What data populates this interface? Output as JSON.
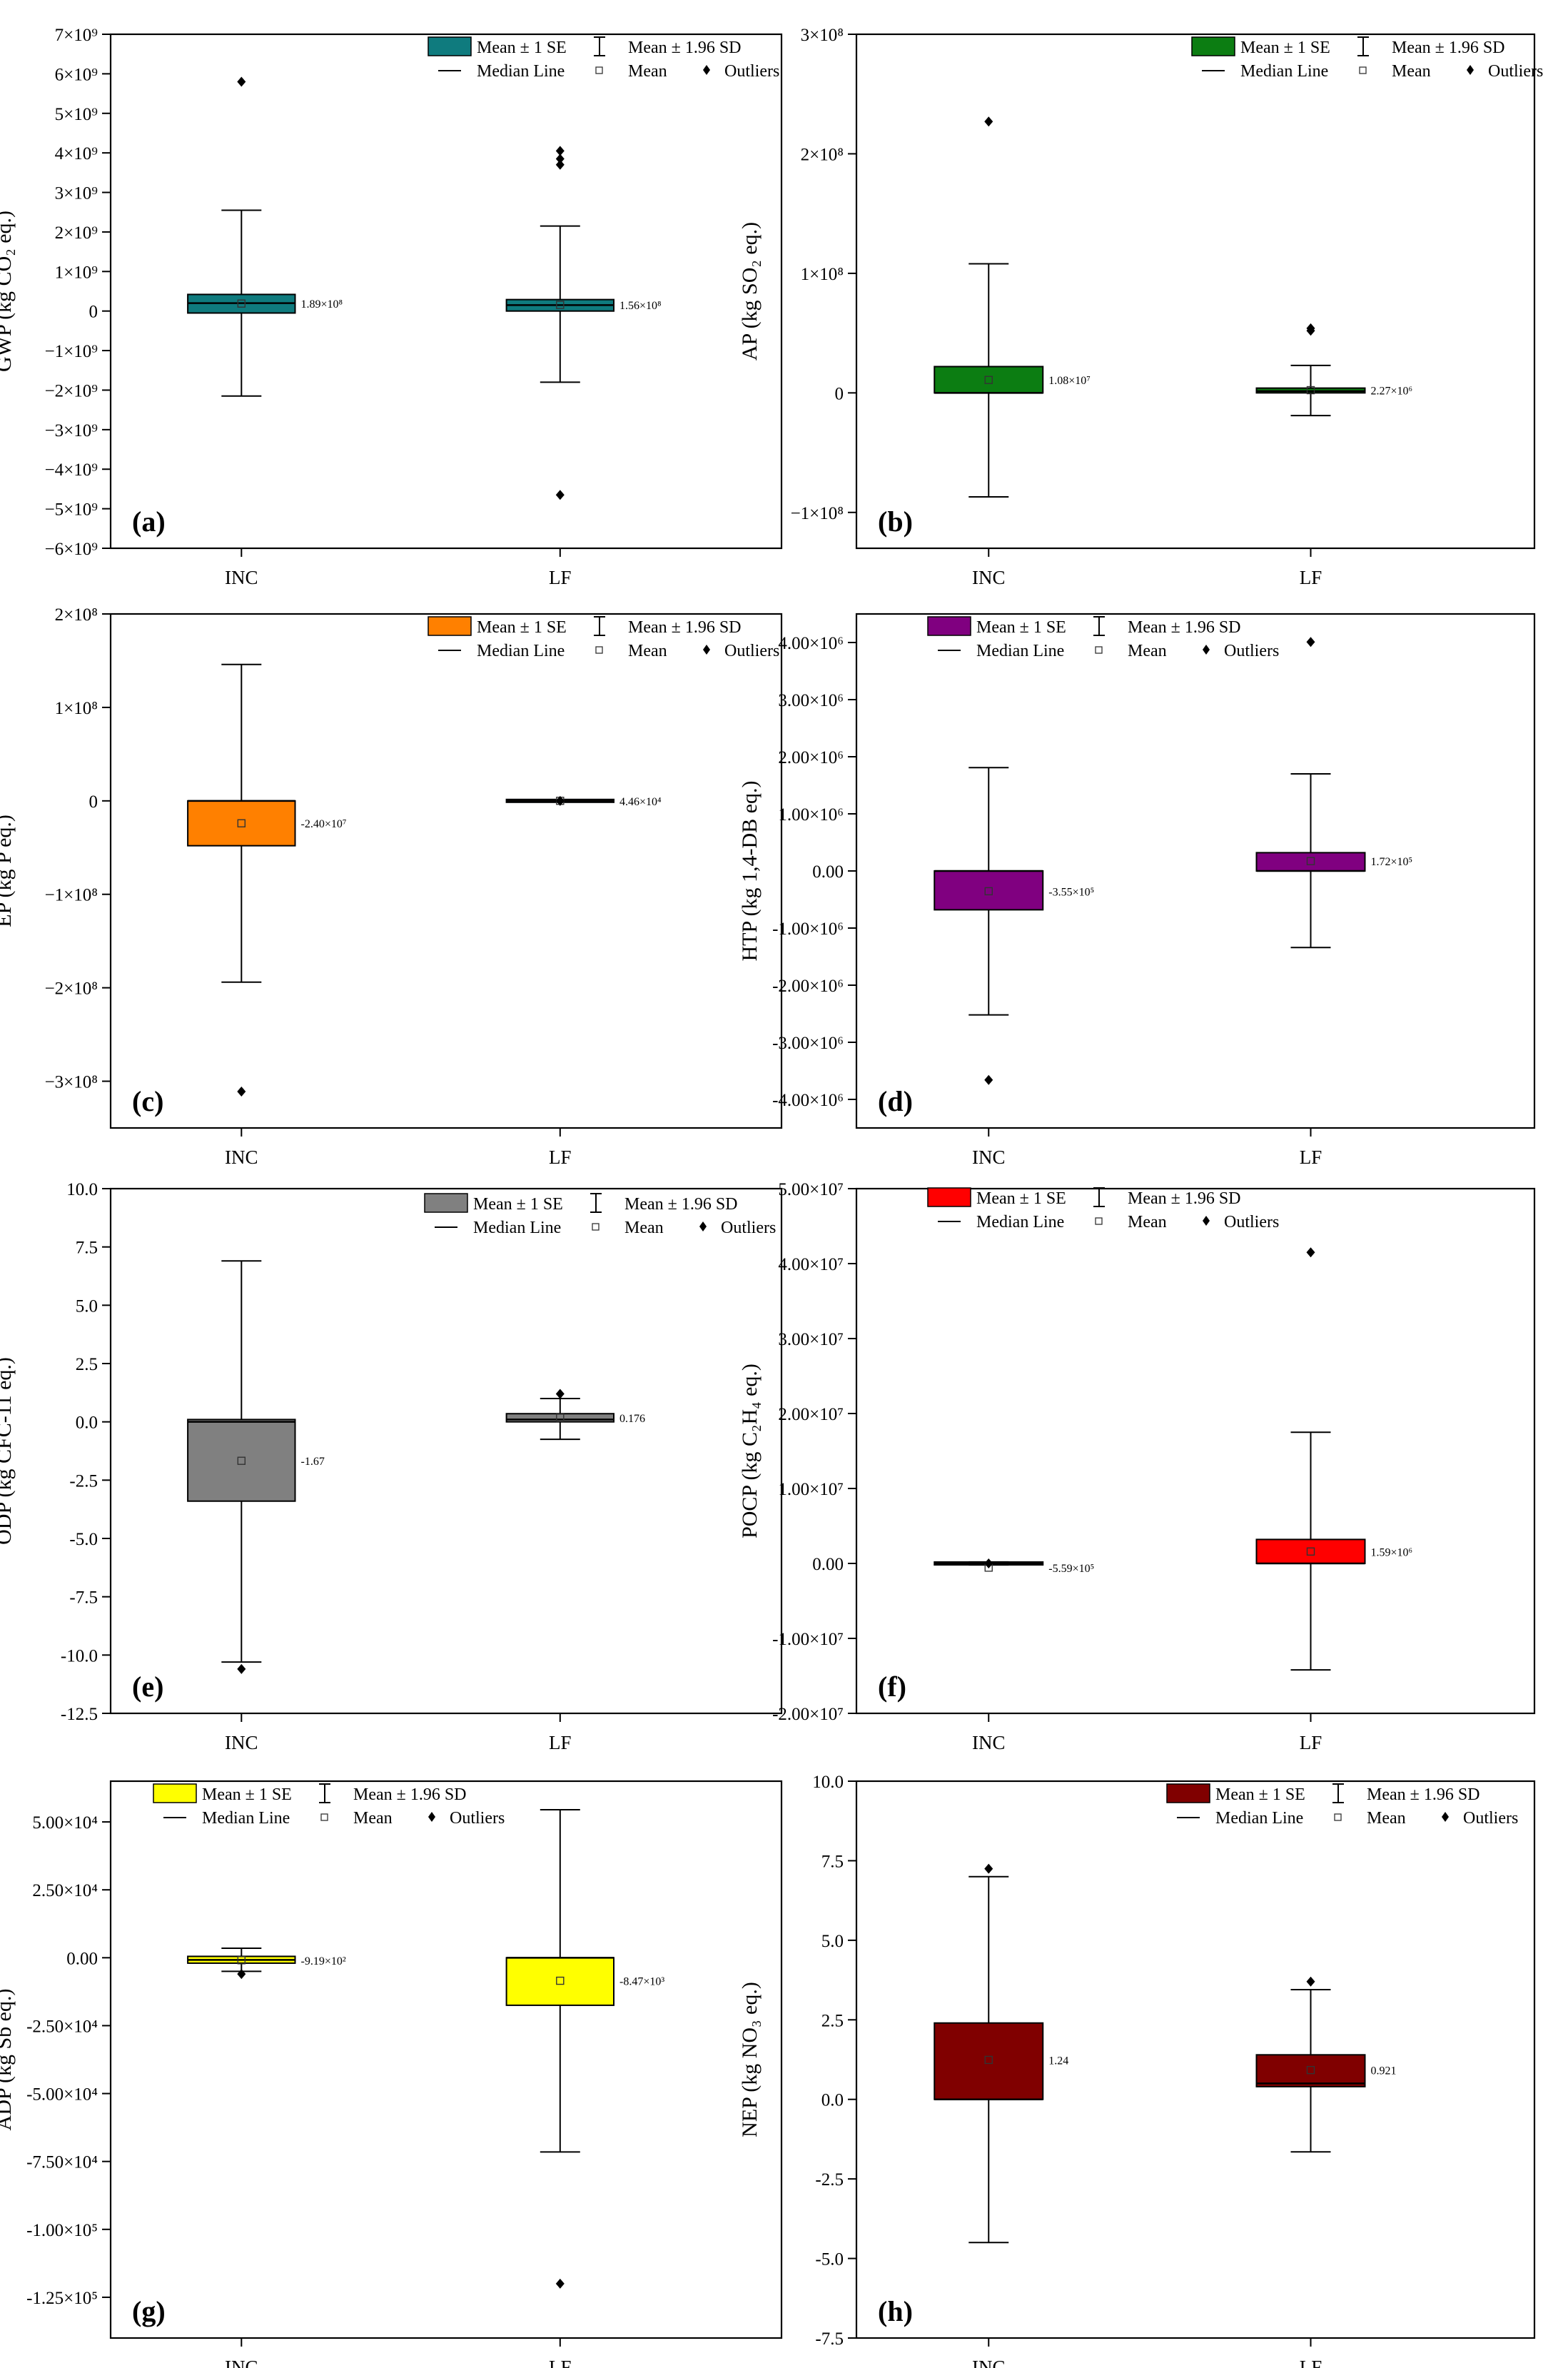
{
  "figure": {
    "legend_labels": {
      "se": "Mean ± 1 SE",
      "sd": "Mean ± 1.96 SD",
      "median": "Median Line",
      "mean": "Mean",
      "outliers": "Outliers"
    }
  },
  "chart_data": [
    {
      "type": "box",
      "panel": "(a)",
      "ylabel": "GWP (kg CO₂ eq.)",
      "categories": [
        "INC",
        "LF"
      ],
      "color": "#0f7b7e",
      "ylim": [
        -6000000000,
        7000000000
      ],
      "ticks": [
        {
          "v": 7000000000,
          "label": "7×10⁹"
        },
        {
          "v": 6000000000,
          "label": "6×10⁹"
        },
        {
          "v": 5000000000,
          "label": "5×10⁹"
        },
        {
          "v": 4000000000,
          "label": "4×10⁹"
        },
        {
          "v": 3000000000,
          "label": "3×10⁹"
        },
        {
          "v": 2000000000,
          "label": "2×10⁹"
        },
        {
          "v": 1000000000,
          "label": "1×10⁹"
        },
        {
          "v": 0,
          "label": "0"
        },
        {
          "v": -1000000000,
          "label": "−1×10⁹"
        },
        {
          "v": -2000000000,
          "label": "−2×10⁹"
        },
        {
          "v": -3000000000,
          "label": "−3×10⁹"
        },
        {
          "v": -4000000000,
          "label": "−4×10⁹"
        },
        {
          "v": -5000000000,
          "label": "−5×10⁹"
        },
        {
          "v": -6000000000,
          "label": "−6×10⁹"
        }
      ],
      "series": [
        {
          "name": "INC",
          "q1": -50000000,
          "q3": 420000000,
          "median": 200000000,
          "mean": 189000000,
          "whisker_low": -2150000000,
          "whisker_high": 2550000000,
          "outliers": [
            5800000000
          ],
          "mean_label": "1.89×10⁸"
        },
        {
          "name": "LF",
          "q1": 0,
          "q3": 290000000,
          "median": 150000000,
          "mean": 156000000,
          "whisker_low": -1800000000,
          "whisker_high": 2150000000,
          "outliers": [
            4050000000,
            3850000000,
            3700000000,
            -4650000000
          ],
          "mean_label": "1.56×10⁸"
        }
      ]
    },
    {
      "type": "box",
      "panel": "(b)",
      "ylabel": "AP (kg SO₂ eq.)",
      "categories": [
        "INC",
        "LF"
      ],
      "color": "#0c7d12",
      "ylim": [
        -130000000,
        300000000
      ],
      "ticks": [
        {
          "v": 300000000,
          "label": "3×10⁸"
        },
        {
          "v": 200000000,
          "label": "2×10⁸"
        },
        {
          "v": 100000000,
          "label": "1×10⁸"
        },
        {
          "v": 0,
          "label": "0"
        },
        {
          "v": -100000000,
          "label": "−1×10⁸"
        }
      ],
      "series": [
        {
          "name": "INC",
          "q1": 0,
          "q3": 22000000,
          "median": 0,
          "mean": 10800000,
          "whisker_low": -87000000,
          "whisker_high": 108000000,
          "outliers": [
            227000000
          ],
          "mean_label": "1.08×10⁷"
        },
        {
          "name": "LF",
          "q1": 0,
          "q3": 4000000,
          "median": 1500000,
          "mean": 2270000,
          "whisker_low": -19000000,
          "whisker_high": 23000000,
          "outliers": [
            54000000,
            52000000
          ],
          "mean_label": "2.27×10⁶"
        }
      ]
    },
    {
      "type": "box",
      "panel": "(c)",
      "ylabel": "EP (kg P eq.)",
      "categories": [
        "INC",
        "LF"
      ],
      "color": "#ff8000",
      "ylim": [
        -350000000,
        200000000
      ],
      "ticks": [
        {
          "v": 200000000,
          "label": "2×10⁸"
        },
        {
          "v": 100000000,
          "label": "1×10⁸"
        },
        {
          "v": 0,
          "label": "0"
        },
        {
          "v": -100000000,
          "label": "−1×10⁸"
        },
        {
          "v": -200000000,
          "label": "−2×10⁸"
        },
        {
          "v": -300000000,
          "label": "−3×10⁸"
        }
      ],
      "series": [
        {
          "name": "INC",
          "q1": -48000000,
          "q3": 0,
          "median": 0,
          "mean": -24000000,
          "whisker_low": -194000000,
          "whisker_high": 146000000,
          "outliers": [
            -311000000
          ],
          "mean_label": "-2.40×10⁷"
        },
        {
          "name": "LF",
          "q1": -200000,
          "q3": 200000,
          "median": 0,
          "mean": 44600,
          "whisker_low": -600000,
          "whisker_high": 600000,
          "outliers": [
            0
          ],
          "mean_label": "4.46×10⁴"
        }
      ]
    },
    {
      "type": "box",
      "panel": "(d)",
      "ylabel": "HTP (kg 1,4-DB eq.)",
      "categories": [
        "INC",
        "LF"
      ],
      "color": "#800080",
      "ylim": [
        -4500000,
        4500000
      ],
      "ticks": [
        {
          "v": 4000000,
          "label": "4.00×10⁶"
        },
        {
          "v": 3000000,
          "label": "3.00×10⁶"
        },
        {
          "v": 2000000,
          "label": "2.00×10⁶"
        },
        {
          "v": 1000000,
          "label": "1.00×10⁶"
        },
        {
          "v": 0,
          "label": "0.00"
        },
        {
          "v": -1000000,
          "label": "-1.00×10⁶"
        },
        {
          "v": -2000000,
          "label": "-2.00×10⁶"
        },
        {
          "v": -3000000,
          "label": "-3.00×10⁶"
        },
        {
          "v": -4000000,
          "label": "-4.00×10⁶"
        }
      ],
      "series": [
        {
          "name": "INC",
          "q1": -680000,
          "q3": 0,
          "median": 0,
          "mean": -355000,
          "whisker_low": -2520000,
          "whisker_high": 1810000,
          "outliers": [
            -3660000
          ],
          "mean_label": "-3.55×10⁵"
        },
        {
          "name": "LF",
          "q1": 0,
          "q3": 320000,
          "median": 0,
          "mean": 172000,
          "whisker_low": -1340000,
          "whisker_high": 1700000,
          "outliers": [
            4010000
          ],
          "mean_label": "1.72×10⁵"
        }
      ]
    },
    {
      "type": "box",
      "panel": "(e)",
      "ylabel": "ODP (kg CFC-11 eq.)",
      "categories": [
        "INC",
        "LF"
      ],
      "color": "#808080",
      "ylim": [
        -12.5,
        10
      ],
      "ticks": [
        {
          "v": 10,
          "label": "10.0"
        },
        {
          "v": 7.5,
          "label": "7.5"
        },
        {
          "v": 5,
          "label": "5.0"
        },
        {
          "v": 2.5,
          "label": "2.5"
        },
        {
          "v": 0,
          "label": "0.0"
        },
        {
          "v": -2.5,
          "label": "-2.5"
        },
        {
          "v": -5,
          "label": "-5.0"
        },
        {
          "v": -7.5,
          "label": "-7.5"
        },
        {
          "v": -10,
          "label": "-10.0"
        },
        {
          "v": -12.5,
          "label": "-12.5"
        }
      ],
      "series": [
        {
          "name": "INC",
          "q1": -3.4,
          "q3": 0.1,
          "median": 0,
          "mean": -1.67,
          "whisker_low": -10.3,
          "whisker_high": 6.9,
          "outliers": [
            -10.6
          ],
          "mean_label": "-1.67"
        },
        {
          "name": "LF",
          "q1": 0,
          "q3": 0.35,
          "median": 0.1,
          "mean": 0.176,
          "whisker_low": -0.75,
          "whisker_high": 1.0,
          "outliers": [
            1.2
          ],
          "mean_label": "0.176"
        }
      ]
    },
    {
      "type": "box",
      "panel": "(f)",
      "ylabel": "POCP (kg C₂H₄ eq.)",
      "categories": [
        "INC",
        "LF"
      ],
      "color": "#ff0000",
      "ylim": [
        -20000000,
        50000000
      ],
      "ticks": [
        {
          "v": 50000000,
          "label": "5.00×10⁷"
        },
        {
          "v": 40000000,
          "label": "4.00×10⁷"
        },
        {
          "v": 30000000,
          "label": "3.00×10⁷"
        },
        {
          "v": 20000000,
          "label": "2.00×10⁷"
        },
        {
          "v": 10000000,
          "label": "1.00×10⁷"
        },
        {
          "v": 0,
          "label": "0.00"
        },
        {
          "v": -10000000,
          "label": "-1.00×10⁷"
        },
        {
          "v": -20000000,
          "label": "-2.00×10⁷"
        }
      ],
      "series": [
        {
          "name": "INC",
          "q1": -100000,
          "q3": 100000,
          "median": 0,
          "mean": -559000,
          "whisker_low": -200000,
          "whisker_high": 200000,
          "outliers": [
            0
          ],
          "mean_label": "-5.59×10⁵"
        },
        {
          "name": "LF",
          "q1": 0,
          "q3": 3200000,
          "median": 0,
          "mean": 1590000,
          "whisker_low": -14200000,
          "whisker_high": 17500000,
          "outliers": [
            41500000
          ],
          "mean_label": "1.59×10⁶"
        }
      ]
    },
    {
      "type": "box",
      "panel": "(g)",
      "ylabel": "ADP (kg Sb eq.)",
      "categories": [
        "INC",
        "LF"
      ],
      "color": "#ffff00",
      "ylim": [
        -140000,
        65000
      ],
      "ticks": [
        {
          "v": 50000,
          "label": "5.00×10⁴"
        },
        {
          "v": 25000,
          "label": "2.50×10⁴"
        },
        {
          "v": 0,
          "label": "0.00"
        },
        {
          "v": -25000,
          "label": "-2.50×10⁴"
        },
        {
          "v": -50000,
          "label": "-5.00×10⁴"
        },
        {
          "v": -75000,
          "label": "-7.50×10⁴"
        },
        {
          "v": -100000,
          "label": "-1.00×10⁵"
        },
        {
          "v": -125000,
          "label": "-1.25×10⁵"
        }
      ],
      "series": [
        {
          "name": "INC",
          "q1": -2000,
          "q3": 500,
          "median": -800,
          "mean": -919,
          "whisker_low": -5000,
          "whisker_high": 3500,
          "outliers": [
            -6000
          ],
          "mean_label": "-9.19×10²"
        },
        {
          "name": "LF",
          "q1": -17500,
          "q3": 0,
          "median": 0,
          "mean": -8470,
          "whisker_low": -71500,
          "whisker_high": 54500,
          "outliers": [
            -120000
          ],
          "mean_label": "-8.47×10³"
        }
      ]
    },
    {
      "type": "box",
      "panel": "(h)",
      "ylabel": "NEP (kg NO₃ eq.)",
      "categories": [
        "INC",
        "LF"
      ],
      "color": "#800000",
      "ylim": [
        -7.5,
        10
      ],
      "ticks": [
        {
          "v": 10,
          "label": "10.0"
        },
        {
          "v": 7.5,
          "label": "7.5"
        },
        {
          "v": 5,
          "label": "5.0"
        },
        {
          "v": 2.5,
          "label": "2.5"
        },
        {
          "v": 0,
          "label": "0.0"
        },
        {
          "v": -2.5,
          "label": "-2.5"
        },
        {
          "v": -5,
          "label": "-5.0"
        },
        {
          "v": -7.5,
          "label": "-7.5"
        }
      ],
      "series": [
        {
          "name": "INC",
          "q1": 0,
          "q3": 2.4,
          "median": 0,
          "mean": 1.24,
          "whisker_low": -4.5,
          "whisker_high": 7.0,
          "outliers": [
            7.25
          ],
          "mean_label": "1.24"
        },
        {
          "name": "LF",
          "q1": 0.4,
          "q3": 1.4,
          "median": 0.5,
          "mean": 0.921,
          "whisker_low": -1.65,
          "whisker_high": 3.45,
          "outliers": [
            3.7
          ],
          "mean_label": "0.921"
        }
      ]
    }
  ]
}
